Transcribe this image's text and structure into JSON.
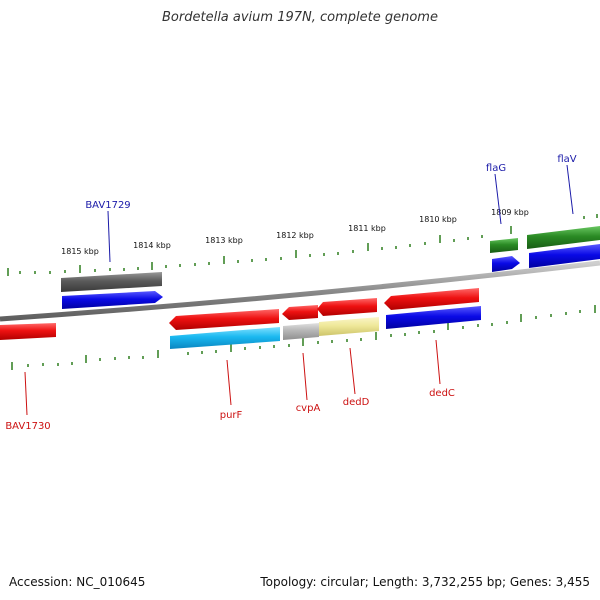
{
  "title": "Bordetella avium 197N, complete genome",
  "footer": {
    "accession": "Accession: NC_010645",
    "topology": "Topology: circular; Length: 3,732,255 bp; Genes: 3,455"
  },
  "scale_labels": [
    "1815 kbp",
    "1814 kbp",
    "1813 kbp",
    "1812 kbp",
    "1811 kbp",
    "1810 kbp",
    "1809 kbp"
  ],
  "colors": {
    "backbone": "#888888",
    "tick": "#2e7d1e",
    "red_feature": "#ee1111",
    "blue_feature": "#0a0ae6",
    "cyan_feature": "#1ab8f0",
    "grey_feature": "#5a5a5a",
    "lightgrey_feature": "#b5b5b5",
    "yellow_feature": "#efe89a",
    "green_feature": "#2a8a24",
    "label_blue": "#1a1aa8",
    "label_red": "#cc1111"
  },
  "genes": [
    {
      "name": "BAV1729",
      "color": "#1a1aa8"
    },
    {
      "name": "flaG",
      "color": "#1a1aa8"
    },
    {
      "name": "flaV",
      "color": "#1a1aa8"
    },
    {
      "name": "BAV1730",
      "color": "#cc1111"
    },
    {
      "name": "purF",
      "color": "#cc1111"
    },
    {
      "name": "cvpA",
      "color": "#cc1111"
    },
    {
      "name": "dedD",
      "color": "#cc1111"
    },
    {
      "name": "dedC",
      "color": "#cc1111"
    }
  ]
}
